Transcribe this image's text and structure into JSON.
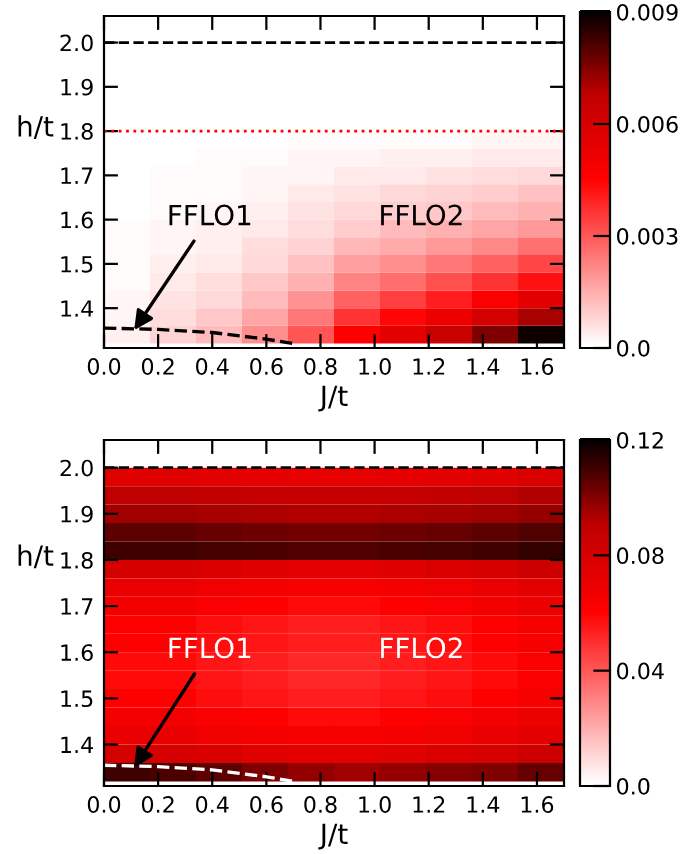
{
  "chart_data": [
    {
      "type": "heatmap",
      "xlabel": "J/t",
      "ylabel": "h/t",
      "xlim": [
        0,
        1.7
      ],
      "ylim": [
        1.31,
        2.06
      ],
      "xticks": [
        "0.0",
        0.2,
        0.4,
        0.6,
        0.8,
        "1.0",
        1.2,
        1.4,
        1.6
      ],
      "yticks": [
        1.4,
        1.5,
        1.6,
        1.7,
        1.8,
        1.9,
        "2.0"
      ],
      "clim": [
        0,
        0.009
      ],
      "cticks": [
        {
          "value": 0,
          "label": "0.0"
        },
        0.003,
        0.006,
        0.009
      ],
      "colors": [
        "#ffffff",
        "#ff8080",
        "#ff0000",
        "#c00000",
        "#000000"
      ],
      "x": [
        0.085,
        0.255,
        0.425,
        0.595,
        0.765,
        0.935,
        1.105,
        1.275,
        1.445,
        1.615
      ],
      "y": [
        1.98,
        1.94,
        1.9,
        1.86,
        1.82,
        1.78,
        1.74,
        1.7,
        1.66,
        1.62,
        1.58,
        1.54,
        1.5,
        1.46,
        1.42,
        1.38,
        1.34
      ],
      "cells": [
        [
          0,
          0,
          0,
          0,
          0,
          0,
          0,
          0,
          0,
          0
        ],
        [
          0,
          0,
          0,
          0,
          0,
          0,
          0,
          0,
          0,
          0
        ],
        [
          0,
          0,
          0,
          0,
          0,
          0,
          0,
          0,
          0,
          0
        ],
        [
          0,
          0,
          0,
          0,
          0,
          0,
          0,
          0,
          0,
          0
        ],
        [
          0,
          0,
          0,
          0,
          0,
          0,
          0,
          0,
          0,
          0
        ],
        [
          0,
          0,
          0,
          0,
          0.0001,
          0.0001,
          0.0001,
          0.0001,
          0.0002,
          0.0002
        ],
        [
          0,
          0,
          0.0001,
          0.0001,
          0.0002,
          0.0002,
          0.0003,
          0.0003,
          0.0004,
          0.0004
        ],
        [
          0,
          0.0001,
          0.0001,
          0.0002,
          0.0002,
          0.0004,
          0.0004,
          0.0005,
          0.0006,
          0.0007
        ],
        [
          0,
          0.0001,
          0.0001,
          0.0002,
          0.0004,
          0.0005,
          0.0007,
          0.0008,
          0.0009,
          0.0011
        ],
        [
          0,
          0.0001,
          0.0002,
          0.0003,
          0.0005,
          0.0007,
          0.0009,
          0.001,
          0.0012,
          0.0014
        ],
        [
          0.0001,
          0.0002,
          0.0003,
          0.0004,
          0.0006,
          0.0009,
          0.0012,
          0.0014,
          0.0016,
          0.0018
        ],
        [
          0.0001,
          0.0002,
          0.0003,
          0.0006,
          0.0008,
          0.0013,
          0.0015,
          0.0018,
          0.0021,
          0.0025
        ],
        [
          0.0001,
          0.0003,
          0.0004,
          0.0007,
          0.0011,
          0.0017,
          0.002,
          0.0024,
          0.0028,
          0.0033
        ],
        [
          0.0001,
          0.0004,
          0.0006,
          0.001,
          0.0014,
          0.0022,
          0.0026,
          0.0031,
          0.0036,
          0.0042
        ],
        [
          0.0002,
          0.0005,
          0.0007,
          0.0012,
          0.0019,
          0.0028,
          0.0034,
          0.004,
          0.0047,
          0.0055
        ],
        [
          0.0002,
          0.0006,
          0.001,
          0.0016,
          0.0024,
          0.0036,
          0.0044,
          0.0052,
          0.006,
          0.007
        ],
        [
          0.0003,
          0.0008,
          0.0012,
          0.002,
          0.003,
          0.0045,
          0.0055,
          0.0065,
          0.0075,
          0.0088
        ]
      ],
      "series": [
        {
          "type": "line",
          "color": "#000000",
          "line_style": "dashed",
          "x": [
            0,
            0.2,
            0.4,
            0.6,
            0.7
          ],
          "values": [
            1.355,
            1.352,
            1.345,
            1.33,
            1.32
          ]
        }
      ],
      "ref_lines": [
        {
          "axis": "y",
          "value": 2.0,
          "color": "#000000",
          "line_style": "dashed"
        },
        {
          "axis": "y",
          "value": 1.8,
          "color": "#ff0000",
          "line_style": "dotted"
        }
      ],
      "annotations": [
        {
          "text": "FFLO1",
          "x": 0.1,
          "y": 1.34
        },
        "FFLO2"
      ]
    },
    {
      "type": "heatmap",
      "xlabel": "J/t",
      "ylabel": "h/t",
      "xlim": [
        0,
        1.7
      ],
      "ylim": [
        1.31,
        2.06
      ],
      "xticks": [
        "0.0",
        0.2,
        0.4,
        0.6,
        0.8,
        "1.0",
        1.2,
        1.4,
        1.6
      ],
      "yticks": [
        1.4,
        1.5,
        1.6,
        1.7,
        1.8,
        1.9,
        "2.0"
      ],
      "clim": [
        0,
        0.12
      ],
      "cticks": [
        {
          "value": 0,
          "label": "0.0"
        },
        0.04,
        0.08,
        0.12
      ],
      "colors": [
        "#ffffff",
        "#ff8080",
        "#ff0000",
        "#c00000",
        "#000000"
      ],
      "x": [
        0.085,
        0.255,
        0.425,
        0.595,
        0.765,
        0.935,
        1.105,
        1.275,
        1.445,
        1.615
      ],
      "y": [
        1.98,
        1.94,
        1.9,
        1.86,
        1.82,
        1.78,
        1.74,
        1.7,
        1.66,
        1.62,
        1.58,
        1.54,
        1.5,
        1.46,
        1.42,
        1.38,
        1.34
      ],
      "cells": [
        [
          0.075,
          0.075,
          0.074,
          0.073,
          0.072,
          0.072,
          0.073,
          0.074,
          0.075,
          0.077
        ],
        [
          0.09,
          0.09,
          0.089,
          0.088,
          0.087,
          0.087,
          0.088,
          0.089,
          0.09,
          0.092
        ],
        [
          0.095,
          0.095,
          0.094,
          0.093,
          0.092,
          0.092,
          0.093,
          0.094,
          0.095,
          0.097
        ],
        [
          0.105,
          0.105,
          0.104,
          0.103,
          0.102,
          0.102,
          0.103,
          0.104,
          0.105,
          0.107
        ],
        [
          0.11,
          0.11,
          0.109,
          0.108,
          0.107,
          0.107,
          0.108,
          0.109,
          0.11,
          0.112
        ],
        [
          0.08,
          0.08,
          0.077,
          0.075,
          0.073,
          0.073,
          0.075,
          0.077,
          0.08,
          0.084
        ],
        [
          0.07,
          0.07,
          0.067,
          0.065,
          0.063,
          0.063,
          0.065,
          0.067,
          0.07,
          0.074
        ],
        [
          0.065,
          0.065,
          0.062,
          0.06,
          0.058,
          0.058,
          0.06,
          0.062,
          0.065,
          0.069
        ],
        [
          0.06,
          0.06,
          0.057,
          0.055,
          0.053,
          0.053,
          0.055,
          0.057,
          0.06,
          0.064
        ],
        [
          0.06,
          0.06,
          0.057,
          0.055,
          0.053,
          0.053,
          0.055,
          0.057,
          0.06,
          0.064
        ],
        [
          0.058,
          0.058,
          0.055,
          0.053,
          0.051,
          0.051,
          0.053,
          0.055,
          0.058,
          0.062
        ],
        [
          0.058,
          0.058,
          0.055,
          0.053,
          0.051,
          0.051,
          0.053,
          0.055,
          0.058,
          0.062
        ],
        [
          0.06,
          0.06,
          0.057,
          0.055,
          0.053,
          0.053,
          0.055,
          0.057,
          0.06,
          0.064
        ],
        [
          0.065,
          0.065,
          0.062,
          0.06,
          0.058,
          0.058,
          0.06,
          0.062,
          0.065,
          0.069
        ],
        [
          0.07,
          0.07,
          0.067,
          0.065,
          0.063,
          0.063,
          0.065,
          0.067,
          0.07,
          0.074
        ],
        [
          0.08,
          0.08,
          0.077,
          0.075,
          0.073,
          0.073,
          0.075,
          0.077,
          0.08,
          0.084
        ],
        [
          0.11,
          0.108,
          0.105,
          0.1,
          0.097,
          0.095,
          0.097,
          0.099,
          0.1,
          0.104
        ]
      ],
      "series": [
        {
          "type": "line",
          "color": "#ffffff",
          "line_style": "dashed",
          "x": [
            0,
            0.2,
            0.4,
            0.6,
            0.7
          ],
          "values": [
            1.355,
            1.352,
            1.345,
            1.33,
            1.32
          ]
        }
      ],
      "ref_lines": [
        {
          "axis": "y",
          "value": 2.0,
          "color": "#000000",
          "line_style": "dashed"
        }
      ],
      "annotations": [
        {
          "text": "FFLO1",
          "x": 0.1,
          "y": 1.34
        },
        "FFLO2"
      ]
    }
  ]
}
